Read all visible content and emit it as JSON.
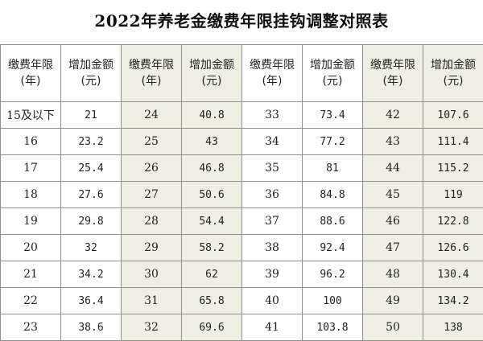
{
  "title": "2022年养老金缴费年限挂钩调整对照表",
  "header": {
    "years_line1": "缴费年限",
    "years_line2": "(年)",
    "amount_line1": "增加金额",
    "amount_line2": "(元)"
  },
  "rows": [
    [
      "15及以下",
      "21",
      "24",
      "40.8",
      "33",
      "73.4",
      "42",
      "107.6"
    ],
    [
      "16",
      "23.2",
      "25",
      "43",
      "34",
      "77.2",
      "43",
      "111.4"
    ],
    [
      "17",
      "25.4",
      "26",
      "46.8",
      "35",
      "81",
      "44",
      "115.2"
    ],
    [
      "18",
      "27.6",
      "27",
      "50.6",
      "36",
      "84.8",
      "45",
      "119"
    ],
    [
      "19",
      "29.8",
      "28",
      "54.4",
      "37",
      "88.6",
      "46",
      "122.8"
    ],
    [
      "20",
      "32",
      "29",
      "58.2",
      "38",
      "92.4",
      "47",
      "126.6"
    ],
    [
      "21",
      "34.2",
      "30",
      "62",
      "39",
      "96.2",
      "48",
      "130.4"
    ],
    [
      "22",
      "36.4",
      "31",
      "65.8",
      "40",
      "100",
      "49",
      "134.2"
    ],
    [
      "23",
      "38.6",
      "32",
      "69.6",
      "41",
      "103.8",
      "50",
      "138"
    ]
  ],
  "colors": {
    "shaded_column_bg": "#efeee2",
    "border": "#8f8f8f",
    "text": "#222222"
  }
}
